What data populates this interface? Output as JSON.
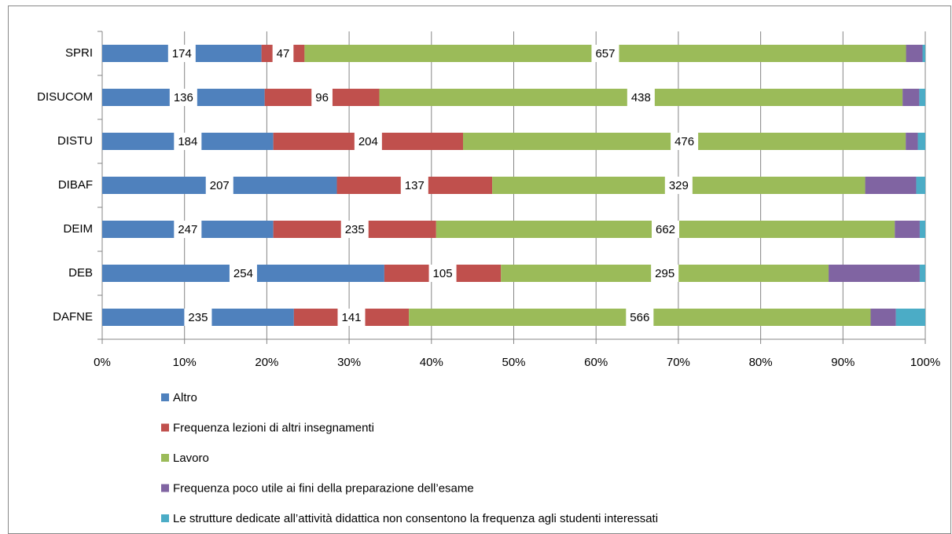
{
  "chart_data": {
    "type": "stacked_bar_100",
    "orientation": "horizontal",
    "categories": [
      "SPRI",
      "DISUCOM",
      "DISTU",
      "DIBAF",
      "DEIM",
      "DEB",
      "DAFNE"
    ],
    "series": [
      {
        "name": "Altro",
        "color": "#4f81bd",
        "data_labels": true,
        "values": [
          174,
          136,
          184,
          207,
          247,
          254,
          235
        ]
      },
      {
        "name": "Frequenza lezioni di altri insegnamenti",
        "color": "#c0504d",
        "data_labels": true,
        "values": [
          47,
          96,
          204,
          137,
          235,
          105,
          141
        ]
      },
      {
        "name": "Lavoro",
        "color": "#9bbb59",
        "data_labels": true,
        "values": [
          657,
          438,
          476,
          329,
          662,
          295,
          566
        ]
      },
      {
        "name": "Frequenza poco utile ai fini della preparazione dell’esame",
        "color": "#8064a2",
        "data_labels": false,
        "values": [
          18,
          14,
          13,
          45,
          36,
          82,
          31
        ]
      },
      {
        "name": "Le strutture dedicate all’attività didattica non consentono la frequenza agli studenti interessati",
        "color": "#4bacc6",
        "data_labels": false,
        "values": [
          3,
          5,
          8,
          8,
          8,
          5,
          36
        ]
      }
    ],
    "xlim": [
      0,
      100
    ],
    "xticks": [
      {
        "value": 0,
        "label": "0%"
      },
      {
        "value": 10,
        "label": "10%"
      },
      {
        "value": 20,
        "label": "20%"
      },
      {
        "value": 30,
        "label": "30%"
      },
      {
        "value": 40,
        "label": "40%"
      },
      {
        "value": 50,
        "label": "50%"
      },
      {
        "value": 60,
        "label": "60%"
      },
      {
        "value": 70,
        "label": "70%"
      },
      {
        "value": 80,
        "label": "80%"
      },
      {
        "value": 90,
        "label": "90%"
      },
      {
        "value": 100,
        "label": "100%"
      }
    ],
    "grid": true,
    "legend": "bottom"
  }
}
